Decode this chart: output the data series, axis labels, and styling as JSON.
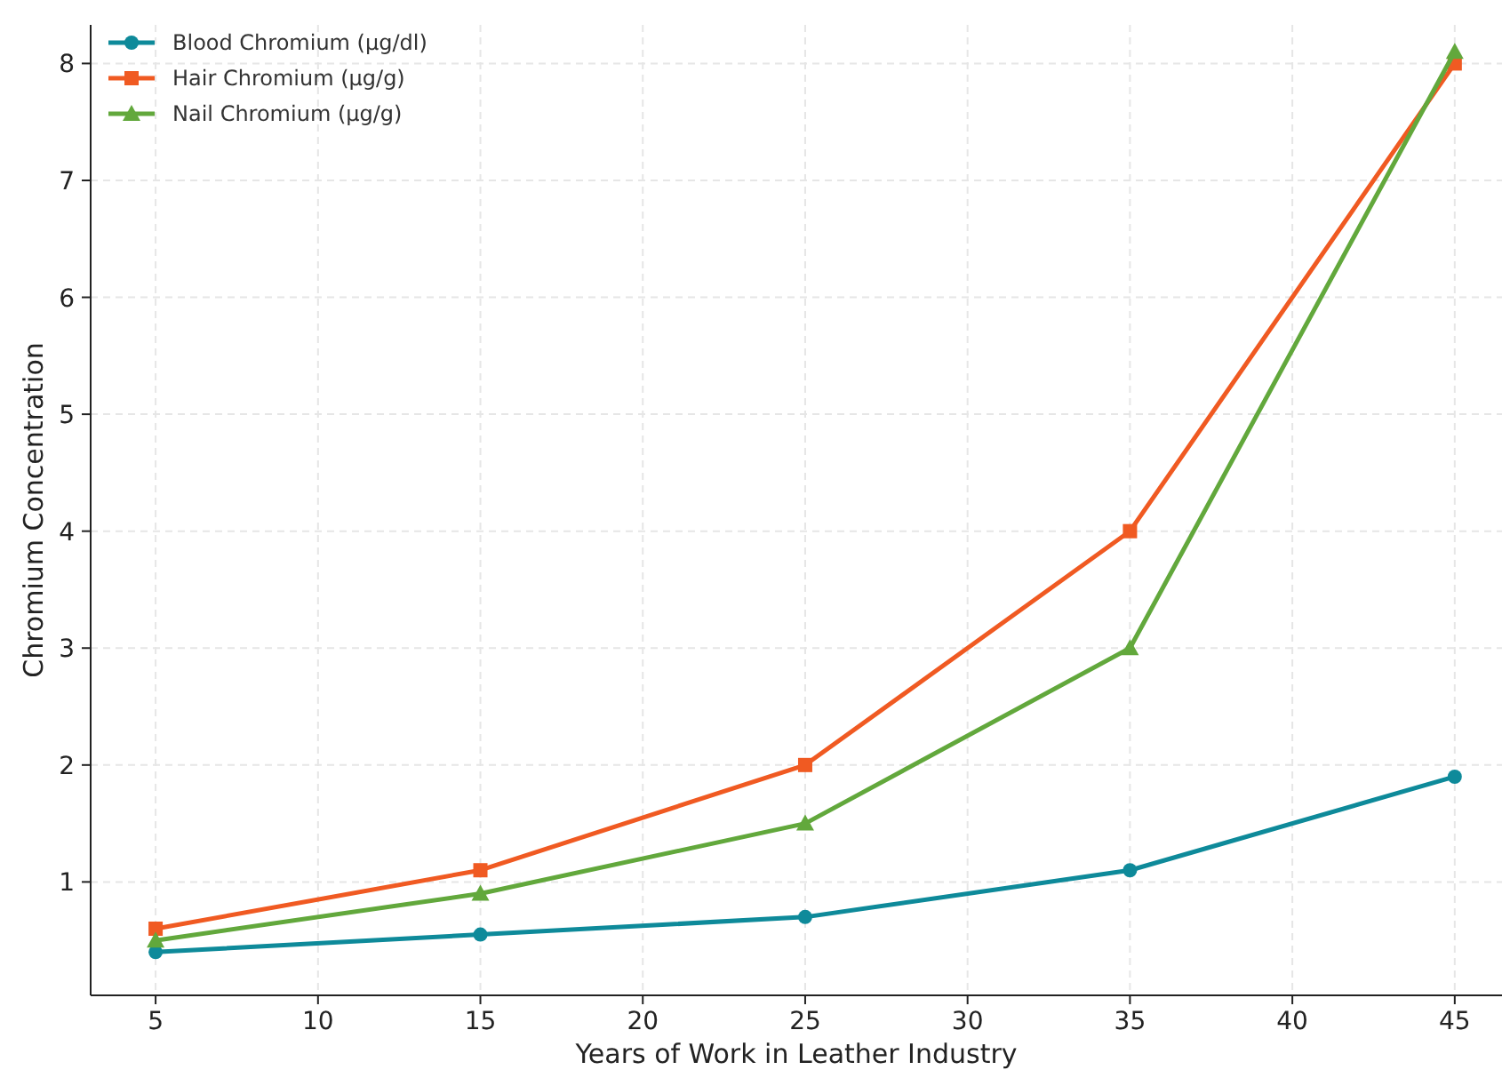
{
  "chart_data": {
    "type": "line",
    "xlabel": "Years of Work in Leather Industry",
    "ylabel": "Chromium Concentration",
    "x": [
      5,
      15,
      25,
      35,
      45
    ],
    "series": [
      {
        "name": "Blood Chromium (µg/dl)",
        "color": "#0e8a9a",
        "values": [
          0.4,
          0.55,
          0.7,
          1.1,
          1.9
        ],
        "marker": "circle"
      },
      {
        "name": "Hair Chromium (µg/g)",
        "color": "#f05a22",
        "values": [
          0.6,
          1.1,
          2,
          4,
          8
        ],
        "marker": "square"
      },
      {
        "name": "Nail Chromium (µg/g)",
        "color": "#62a83c",
        "values": [
          0.5,
          0.9,
          1.5,
          3,
          8.1
        ],
        "marker": "triangle"
      }
    ],
    "xlim": [
      3,
      46.4
    ],
    "xticks": [
      5,
      10,
      15,
      20,
      25,
      30,
      35,
      40,
      45
    ],
    "ylim": [
      0.03,
      8.33
    ],
    "yticks": [
      1,
      2,
      3,
      4,
      5,
      6,
      7,
      8
    ],
    "grid": true,
    "legend": "top left",
    "line_style": "solid"
  }
}
